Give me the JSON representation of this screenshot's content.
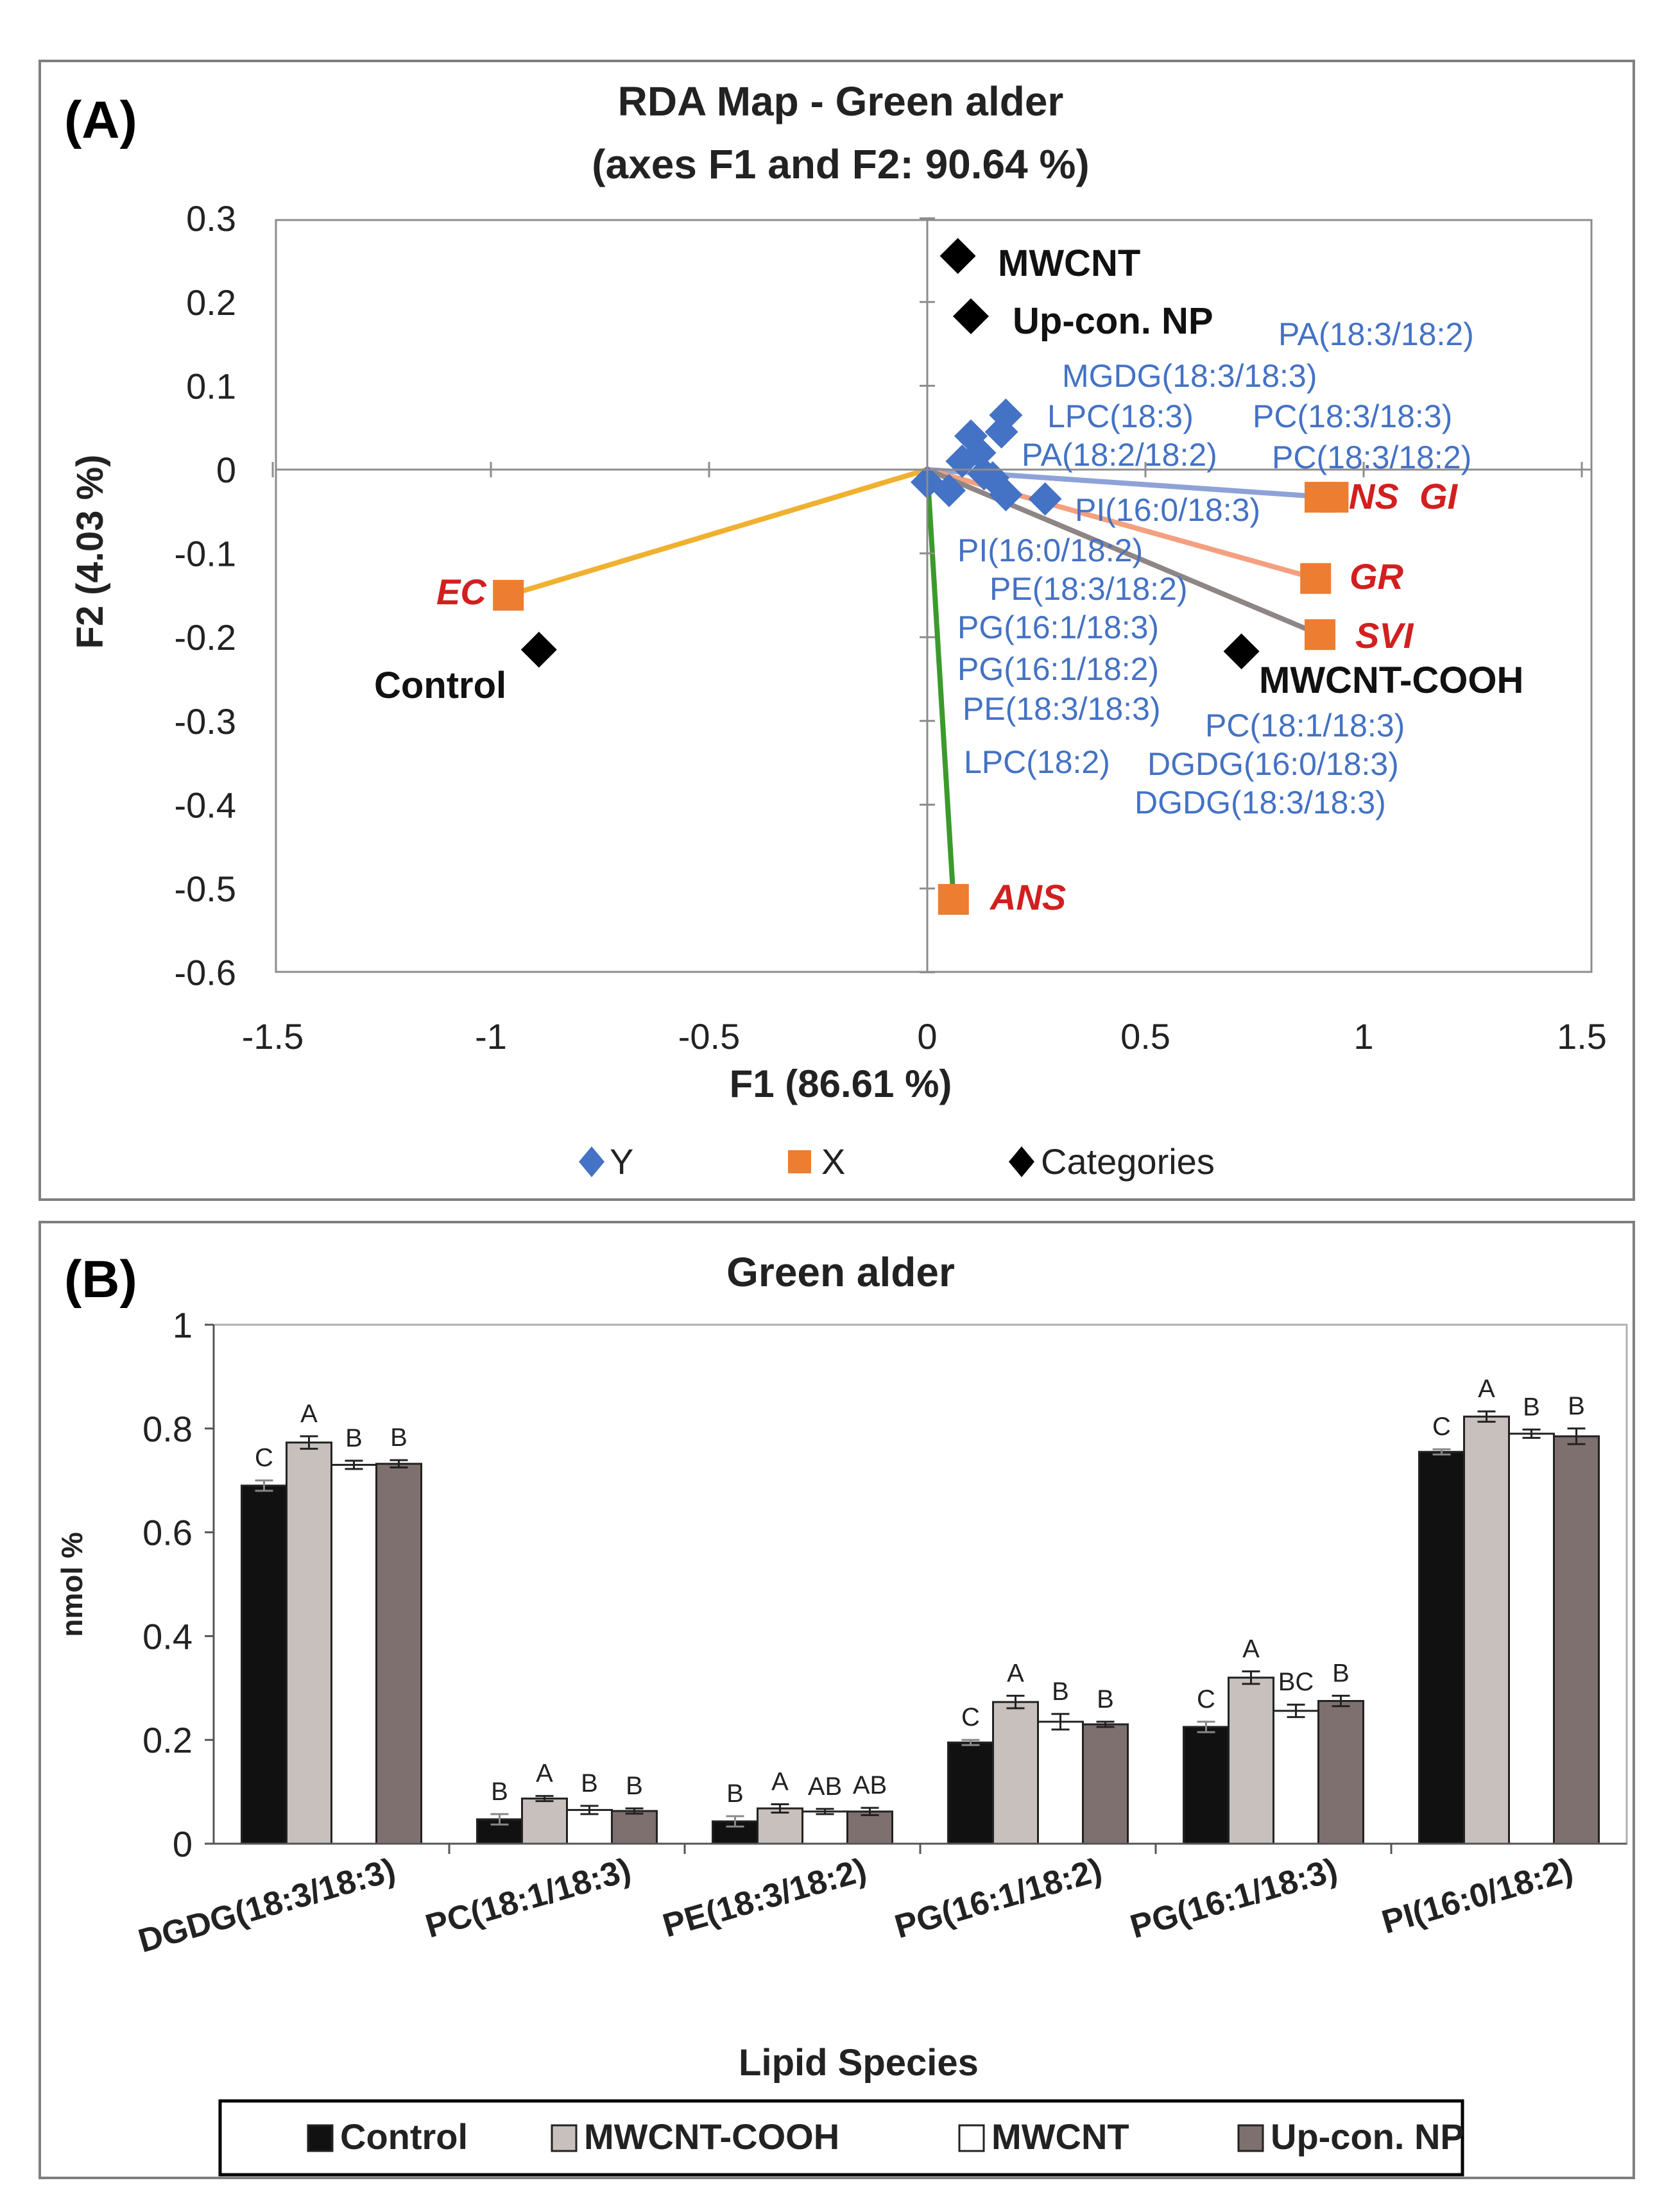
{
  "panel_a": {
    "panel_label": "(A)",
    "title_line1": "RDA Map - Green alder",
    "title_line2": "(axes F1 and F2: 90.64 %)",
    "x_label": "F1 (86.61 %)",
    "y_label": "F2 (4.03 %)",
    "legend": [
      {
        "label": "Y",
        "marker": "diamond",
        "color": "#4472C4"
      },
      {
        "label": "X",
        "marker": "square",
        "color": "#ED7D31"
      },
      {
        "label": "Categories",
        "marker": "diamond",
        "color": "#000000"
      }
    ]
  },
  "panel_b": {
    "panel_label": "(B)",
    "title": "Green alder",
    "x_label": "Lipid Species",
    "y_label": "nmol %"
  },
  "chart_data": [
    {
      "type": "scatter",
      "title": "RDA Map - Green alder",
      "subtitle": "(axes F1 and F2: 90.64 %)",
      "xlabel": "F1 (86.61 %)",
      "ylabel": "F2 (4.03 %)",
      "xlim": [
        -1.5,
        1.5
      ],
      "ylim": [
        -0.6,
        0.3
      ],
      "x_ticks": [
        -1.5,
        -1,
        -0.5,
        0,
        0.5,
        1,
        1.5
      ],
      "x_tick_labels": [
        "-1.5",
        "-1",
        "-0.5",
        "0",
        "0.5",
        "1",
        "1.5"
      ],
      "y_ticks": [
        0.3,
        0.2,
        0.1,
        0,
        -0.1,
        -0.2,
        -0.3,
        -0.4,
        -0.5,
        -0.6
      ],
      "y_tick_labels": [
        "0.3",
        "0.2",
        "0.1",
        "0",
        "-0.1",
        "-0.2",
        "-0.3",
        "-0.4",
        "-0.5",
        "-0.6"
      ],
      "series": [
        {
          "name": "Y",
          "marker": "diamond",
          "color": "#4472C4",
          "points": [
            {
              "x": 0.0,
              "y": -0.015
            },
            {
              "x": 0.05,
              "y": -0.025
            },
            {
              "x": 0.08,
              "y": 0.01
            },
            {
              "x": 0.1,
              "y": 0.04
            },
            {
              "x": 0.12,
              "y": 0.02
            },
            {
              "x": 0.13,
              "y": -0.005
            },
            {
              "x": 0.15,
              "y": -0.01
            },
            {
              "x": 0.17,
              "y": 0.045
            },
            {
              "x": 0.18,
              "y": 0.065
            },
            {
              "x": 0.18,
              "y": -0.03
            },
            {
              "x": 0.27,
              "y": -0.035
            }
          ]
        },
        {
          "name": "X",
          "marker": "square",
          "color": "#ED7D31",
          "points": [
            {
              "x": -0.96,
              "y": -0.15,
              "label": "EC"
            },
            {
              "x": 0.9,
              "y": -0.033,
              "label": "NS"
            },
            {
              "x": 0.93,
              "y": -0.033,
              "label": "GI"
            },
            {
              "x": 0.89,
              "y": -0.13,
              "label": "GR"
            },
            {
              "x": 0.9,
              "y": -0.197,
              "label": "SVI"
            },
            {
              "x": 0.06,
              "y": -0.513,
              "label": "ANS"
            }
          ]
        },
        {
          "name": "Categories",
          "marker": "diamond",
          "color": "#000000",
          "points": [
            {
              "x": 0.07,
              "y": 0.255,
              "label": "MWCNT"
            },
            {
              "x": 0.1,
              "y": 0.183,
              "label": "Up-con. NP"
            },
            {
              "x": -0.89,
              "y": -0.215,
              "label": "Control"
            },
            {
              "x": 0.72,
              "y": -0.217,
              "label": "MWCNT-COOH"
            }
          ]
        }
      ],
      "vectors": [
        {
          "to": "EC",
          "x": -0.96,
          "y": -0.15,
          "color": "#F0B030"
        },
        {
          "to": "NS GI",
          "x": 0.92,
          "y": -0.033,
          "color": "#8EA2D8"
        },
        {
          "to": "GR",
          "x": 0.89,
          "y": -0.13,
          "color": "#F4A080"
        },
        {
          "to": "SVI",
          "x": 0.9,
          "y": -0.197,
          "color": "#8E8585"
        },
        {
          "to": "ANS",
          "x": 0.06,
          "y": -0.513,
          "color": "#3C9A2C"
        }
      ],
      "lipid_labels": [
        "PA(18:3/18:2)",
        "MGDG(18:3/18:3)",
        "LPC(18:3)",
        "PC(18:3/18:3)",
        "PA(18:2/18:2)",
        "PC(18:3/18:2)",
        "PI(16:0/18:3)",
        "PI(16:0/18:2)",
        "PE(18:3/18:2)",
        "PG(16:1/18:3)",
        "PG(16:1/18:2)",
        "PE(18:3/18:3)",
        "LPC(18:2)",
        "PC(18:1/18:3)",
        "DGDG(16:0/18:3)",
        "DGDG(18:3/18:3)"
      ]
    },
    {
      "type": "bar",
      "title": "Green alder",
      "xlabel": "Lipid Species",
      "ylabel": "nmol %",
      "ylim": [
        0,
        1
      ],
      "y_ticks": [
        0,
        0.2,
        0.4,
        0.6,
        0.8,
        1
      ],
      "y_tick_labels": [
        "0",
        "0.2",
        "0.4",
        "0.6",
        "0.8",
        "1"
      ],
      "categories": [
        "DGDG(18:3/18:3)",
        "PC(18:1/18:3)",
        "PE(18:3/18:2)",
        "PG(16:1/18:2)",
        "PG(16:1/18:3)",
        "PI(16:0/18:2)"
      ],
      "series": [
        {
          "name": "Control",
          "color": "#111111",
          "values": [
            0.69,
            0.047,
            0.043,
            0.195,
            0.225,
            0.755
          ],
          "errors": [
            0.01,
            0.01,
            0.01,
            0.005,
            0.01,
            0.005
          ],
          "letters": [
            "C",
            "B",
            "B",
            "C",
            "C",
            "C"
          ]
        },
        {
          "name": "MWCNT-COOH",
          "color": "#C8C0BC",
          "values": [
            0.773,
            0.087,
            0.068,
            0.273,
            0.32,
            0.823
          ],
          "errors": [
            0.012,
            0.005,
            0.008,
            0.012,
            0.012,
            0.01
          ],
          "letters": [
            "A",
            "A",
            "A",
            "A",
            "A",
            "A"
          ]
        },
        {
          "name": "MWCNT",
          "color": "#FFFFFF",
          "values": [
            0.73,
            0.065,
            0.062,
            0.235,
            0.256,
            0.79
          ],
          "errors": [
            0.008,
            0.008,
            0.005,
            0.015,
            0.012,
            0.008
          ],
          "letters": [
            "B",
            "B",
            "AB",
            "B",
            "BC",
            "B"
          ]
        },
        {
          "name": "Up-con. NP",
          "color": "#7E706E",
          "values": [
            0.732,
            0.063,
            0.062,
            0.23,
            0.275,
            0.785
          ],
          "errors": [
            0.007,
            0.005,
            0.007,
            0.005,
            0.01,
            0.015
          ],
          "letters": [
            "B",
            "B",
            "AB",
            "B",
            "B",
            "B"
          ]
        }
      ],
      "legend_position": "bottom"
    }
  ]
}
